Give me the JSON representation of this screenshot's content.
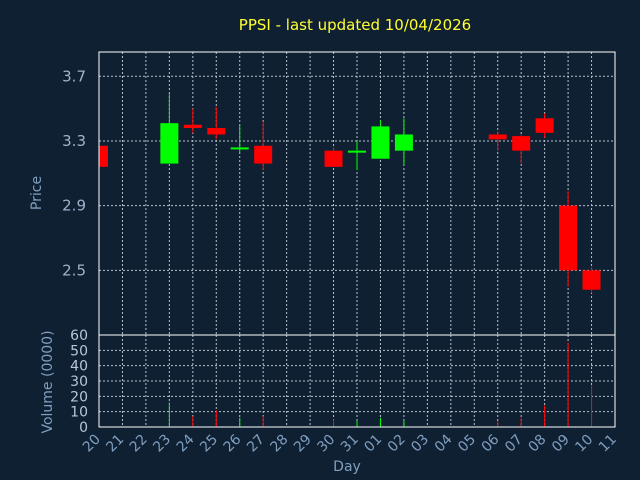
{
  "chart_data": [
    {
      "type": "candlestick",
      "title": "PPSI - last updated 10/04/2026",
      "ylabel": "Price",
      "ylim": [
        2.1,
        3.85
      ],
      "yticks": [
        2.5,
        2.9,
        3.3,
        3.7
      ],
      "grid": true,
      "x": [
        "20",
        "21",
        "22",
        "23",
        "24",
        "25",
        "26",
        "27",
        "28",
        "29",
        "30",
        "31",
        "01",
        "02",
        "03",
        "04",
        "05",
        "06",
        "07",
        "08",
        "09",
        "10",
        "11"
      ],
      "candles": [
        {
          "x": "20",
          "open": 3.27,
          "high": 3.27,
          "low": 3.14,
          "close": 3.14
        },
        {
          "x": "23",
          "open": 3.16,
          "high": 3.59,
          "low": 3.16,
          "close": 3.41
        },
        {
          "x": "24",
          "open": 3.4,
          "high": 3.5,
          "low": 3.35,
          "close": 3.38
        },
        {
          "x": "25",
          "open": 3.38,
          "high": 3.51,
          "low": 3.31,
          "close": 3.34
        },
        {
          "x": "26",
          "open": 3.25,
          "high": 3.4,
          "low": 3.23,
          "close": 3.26
        },
        {
          "x": "27",
          "open": 3.27,
          "high": 3.42,
          "low": 3.12,
          "close": 3.16
        },
        {
          "x": "30",
          "open": 3.24,
          "high": 3.26,
          "low": 3.14,
          "close": 3.14
        },
        {
          "x": "31",
          "open": 3.24,
          "high": 3.3,
          "low": 3.12,
          "close": 3.24
        },
        {
          "x": "01",
          "open": 3.19,
          "high": 3.43,
          "low": 3.19,
          "close": 3.39
        },
        {
          "x": "02",
          "open": 3.24,
          "high": 3.44,
          "low": 3.15,
          "close": 3.34
        },
        {
          "x": "06",
          "open": 3.34,
          "high": 3.36,
          "low": 3.24,
          "close": 3.31
        },
        {
          "x": "07",
          "open": 3.33,
          "high": 3.34,
          "low": 3.16,
          "close": 3.24
        },
        {
          "x": "08",
          "open": 3.44,
          "high": 3.47,
          "low": 3.32,
          "close": 3.35
        },
        {
          "x": "09",
          "open": 2.9,
          "high": 2.99,
          "low": 2.4,
          "close": 2.5
        },
        {
          "x": "10",
          "open": 2.5,
          "high": 2.52,
          "low": 2.36,
          "close": 2.38
        }
      ],
      "colors": {
        "up": "#00ff00",
        "down": "#ff0000"
      }
    },
    {
      "type": "bar",
      "ylabel": "Volume (0000)",
      "xlabel": "Day",
      "ylim": [
        0,
        60
      ],
      "yticks": [
        0,
        10,
        20,
        30,
        40,
        50,
        60
      ],
      "grid": true,
      "categories": [
        "20",
        "21",
        "22",
        "23",
        "24",
        "25",
        "26",
        "27",
        "28",
        "29",
        "30",
        "31",
        "01",
        "02",
        "03",
        "04",
        "05",
        "06",
        "07",
        "08",
        "09",
        "10",
        "11"
      ],
      "values": [
        0,
        0,
        0,
        16,
        7,
        11,
        6,
        7,
        0,
        0,
        5,
        4,
        6,
        4,
        0,
        0,
        0,
        4,
        6,
        14,
        55,
        27,
        0
      ],
      "bar_colors": {
        "default": "#ff0000",
        "up": "#00ff00"
      },
      "up_days": [
        "23",
        "26",
        "31",
        "01",
        "02"
      ]
    }
  ]
}
